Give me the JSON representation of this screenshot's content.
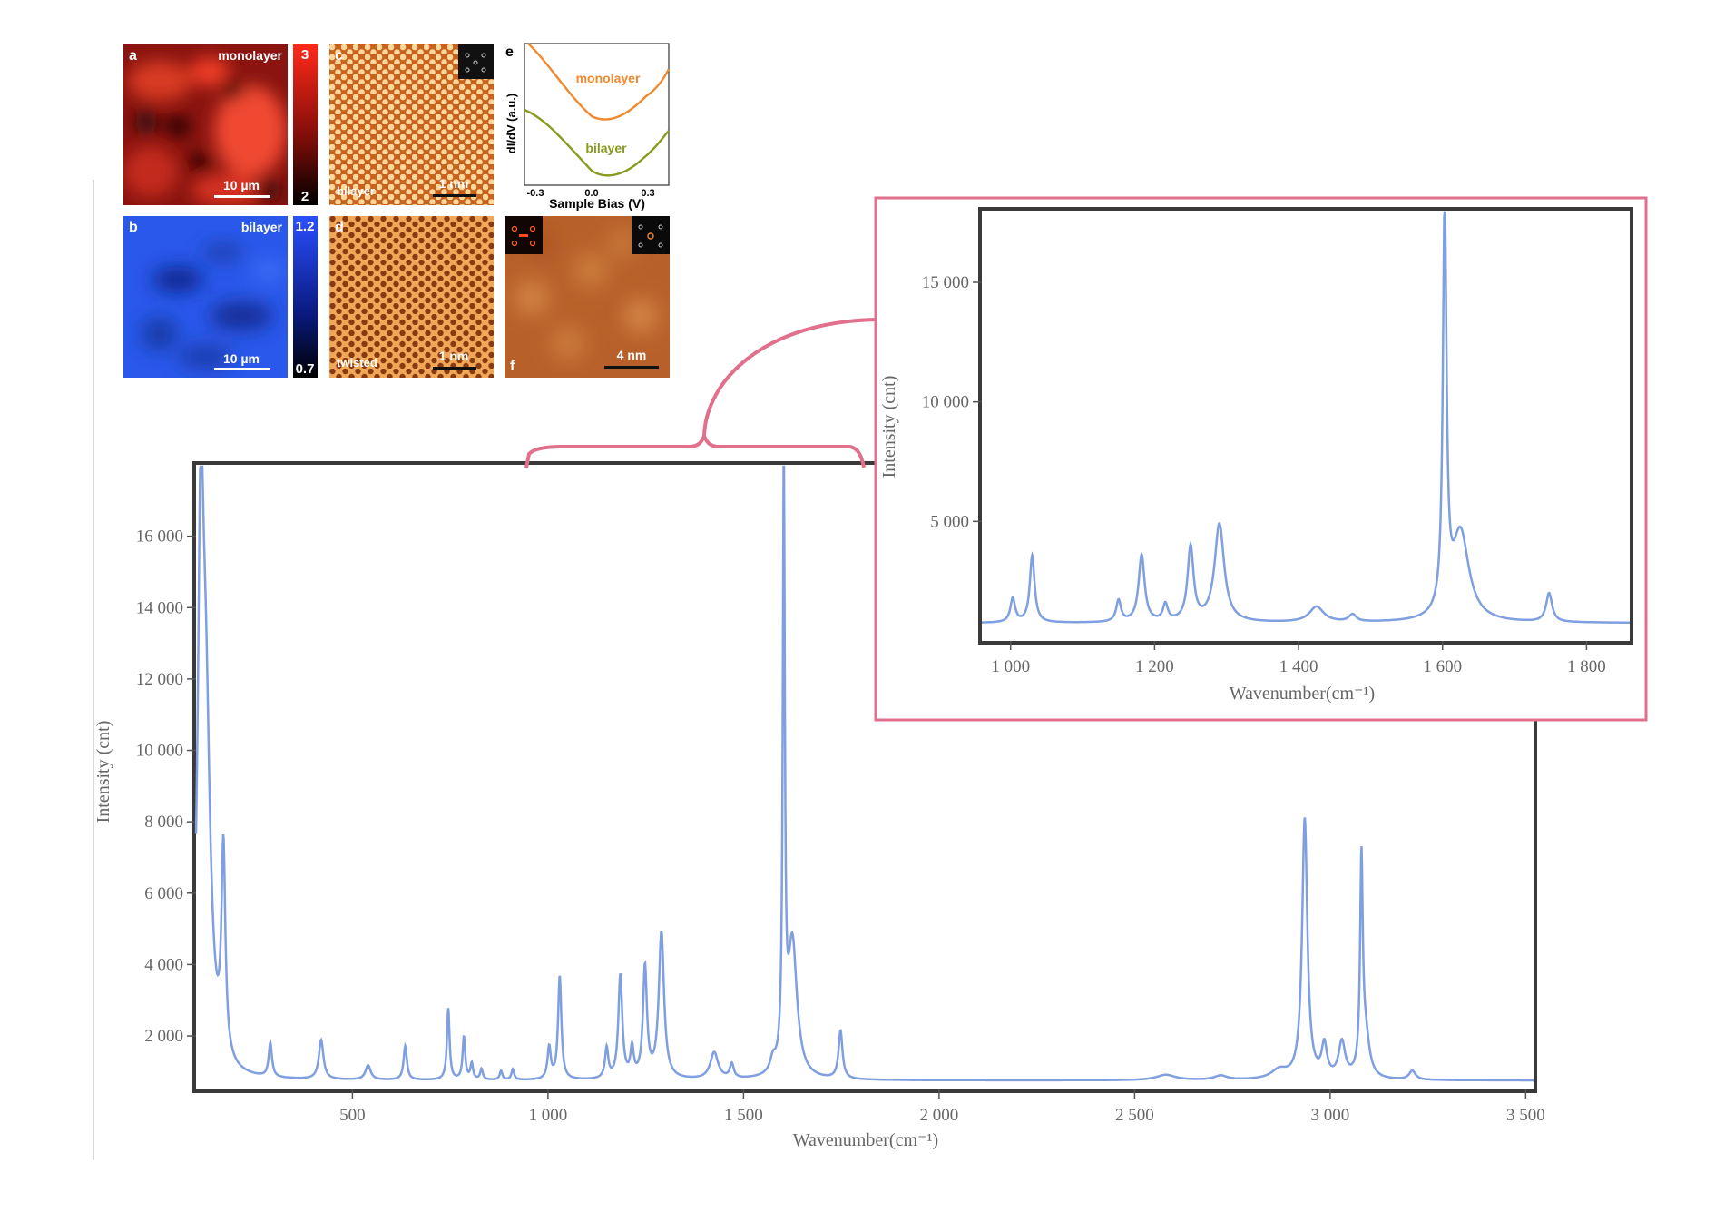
{
  "colors": {
    "spectrum": "#7f9fe0",
    "frame": "#3a3a3a",
    "inset_border": "#e0708c",
    "connector": "#e0708c",
    "monolayer_curve": "#f08a2e",
    "bilayer_curve": "#8a9a1e",
    "map_red": "#d0281c",
    "map_blue": "#2a55e6",
    "stm_orange": "#d9782a"
  },
  "panels": {
    "a": {
      "letter": "a",
      "title": "monolayer",
      "scale": "10 µm",
      "cbar_max": "3",
      "cbar_min": "2"
    },
    "b": {
      "letter": "b",
      "title": "bilayer",
      "scale": "10 µm",
      "cbar_max": "1.2",
      "cbar_min": "0.7"
    },
    "c": {
      "letter": "c",
      "title": "bilayer",
      "scale": "1 nm",
      "inset_icon": "fft-pattern-icon"
    },
    "d": {
      "letter": "d",
      "title": "twisted",
      "scale": "1 nm"
    },
    "e": {
      "letter": "e",
      "ylabel": "dI/dV (a.u.)",
      "xlabel": "Sample Bias (V)",
      "xticks": [
        "-0.3",
        "0.0",
        "0.3"
      ],
      "curve1": "monolayer",
      "curve2": "bilayer"
    },
    "f": {
      "letter": "f",
      "scale": "4 nm",
      "inset_icons": [
        "fft-left-icon",
        "fft-right-icon"
      ]
    }
  },
  "chart_data": [
    {
      "id": "main-spectrum",
      "type": "line",
      "xlabel": "Wavenumber(cm⁻¹)",
      "ylabel": "Intensity (cnt)",
      "xlim": [
        100,
        3520
      ],
      "ylim": [
        500,
        18000
      ],
      "xticks": [
        500,
        1000,
        1500,
        2000,
        2500,
        3000,
        3500
      ],
      "xtick_labels": [
        "500",
        "1 000",
        "1 500",
        "2 000",
        "2 500",
        "3 000",
        "3 500"
      ],
      "yticks": [
        2000,
        4000,
        6000,
        8000,
        10000,
        12000,
        14000,
        16000
      ],
      "ytick_labels": [
        "2 000",
        "4 000",
        "6 000",
        "8 000",
        "10 000",
        "12 000",
        "14 000",
        "16 000"
      ],
      "baseline": 750,
      "peaks": [
        {
          "x": 112,
          "height": 13100,
          "width": 9
        },
        {
          "x": 125,
          "height": 9000,
          "width": 14
        },
        {
          "x": 170,
          "height": 5800,
          "width": 6
        },
        {
          "x": 290,
          "height": 950,
          "width": 5
        },
        {
          "x": 420,
          "height": 1100,
          "width": 7
        },
        {
          "x": 540,
          "height": 400,
          "width": 8
        },
        {
          "x": 635,
          "height": 950,
          "width": 5
        },
        {
          "x": 745,
          "height": 2000,
          "width": 4
        },
        {
          "x": 785,
          "height": 1200,
          "width": 4
        },
        {
          "x": 805,
          "height": 450,
          "width": 4
        },
        {
          "x": 830,
          "height": 300,
          "width": 4
        },
        {
          "x": 880,
          "height": 250,
          "width": 4
        },
        {
          "x": 910,
          "height": 300,
          "width": 4
        },
        {
          "x": 1003,
          "height": 900,
          "width": 5
        },
        {
          "x": 1030,
          "height": 2900,
          "width": 5
        },
        {
          "x": 1150,
          "height": 850,
          "width": 5
        },
        {
          "x": 1185,
          "height": 2900,
          "width": 6
        },
        {
          "x": 1215,
          "height": 800,
          "width": 5
        },
        {
          "x": 1248,
          "height": 3100,
          "width": 6
        },
        {
          "x": 1290,
          "height": 4100,
          "width": 8
        },
        {
          "x": 1425,
          "height": 750,
          "width": 12
        },
        {
          "x": 1470,
          "height": 400,
          "width": 6
        },
        {
          "x": 1575,
          "height": 350,
          "width": 8
        },
        {
          "x": 1603,
          "height": 17100,
          "width": 3
        },
        {
          "x": 1625,
          "height": 3800,
          "width": 14
        },
        {
          "x": 1748,
          "height": 1350,
          "width": 6
        },
        {
          "x": 2580,
          "height": 150,
          "width": 30
        },
        {
          "x": 2720,
          "height": 120,
          "width": 20
        },
        {
          "x": 2870,
          "height": 250,
          "width": 25
        },
        {
          "x": 2935,
          "height": 7300,
          "width": 8
        },
        {
          "x": 2985,
          "height": 900,
          "width": 8
        },
        {
          "x": 3030,
          "height": 1000,
          "width": 10
        },
        {
          "x": 3080,
          "height": 5800,
          "width": 4
        },
        {
          "x": 3090,
          "height": 1200,
          "width": 12
        },
        {
          "x": 3210,
          "height": 250,
          "width": 10
        }
      ]
    },
    {
      "id": "inset-spectrum",
      "type": "line",
      "xlabel": "Wavenumber(cm⁻¹)",
      "ylabel": "Intensity (cnt)",
      "xlim": [
        960,
        1860
      ],
      "ylim": [
        0,
        18000
      ],
      "xticks": [
        1000,
        1200,
        1400,
        1600,
        1800
      ],
      "xtick_labels": [
        "1 000",
        "1 200",
        "1 400",
        "1 600",
        "1 800"
      ],
      "yticks": [
        5000,
        10000,
        15000
      ],
      "ytick_labels": [
        "5 000",
        "10 000",
        "15 000"
      ],
      "baseline": 750,
      "peaks": [
        {
          "x": 1003,
          "height": 1000,
          "width": 4
        },
        {
          "x": 1030,
          "height": 2800,
          "width": 4
        },
        {
          "x": 1150,
          "height": 900,
          "width": 4
        },
        {
          "x": 1182,
          "height": 2800,
          "width": 5
        },
        {
          "x": 1215,
          "height": 700,
          "width": 4
        },
        {
          "x": 1250,
          "height": 3100,
          "width": 5
        },
        {
          "x": 1290,
          "height": 4100,
          "width": 8
        },
        {
          "x": 1425,
          "height": 650,
          "width": 12
        },
        {
          "x": 1475,
          "height": 300,
          "width": 6
        },
        {
          "x": 1603,
          "height": 17000,
          "width": 3
        },
        {
          "x": 1625,
          "height": 3700,
          "width": 14
        },
        {
          "x": 1748,
          "height": 1200,
          "width": 5
        }
      ]
    }
  ]
}
